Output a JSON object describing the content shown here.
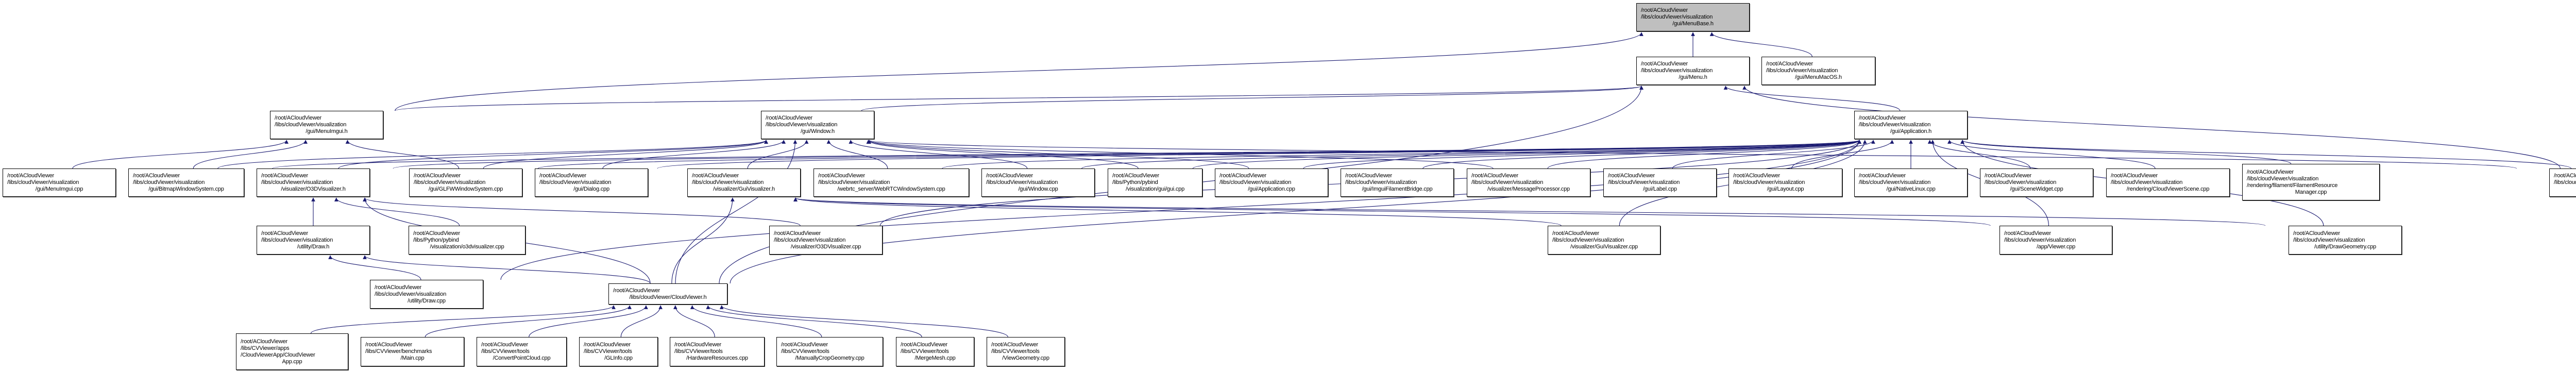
{
  "graph": {
    "edge_color": "#191970",
    "root_fill": "#bfbfbf",
    "nodes": [
      {
        "id": "menubase_h",
        "root": true,
        "lines": [
          "/root/ACloudViewer",
          "/libs/cloudViewer/visualization",
          "/gui/MenuBase.h"
        ]
      },
      {
        "id": "menu_h",
        "lines": [
          "/root/ACloudViewer",
          "/libs/cloudViewer/visualization",
          "/gui/Menu.h"
        ]
      },
      {
        "id": "menumacos_h",
        "lines": [
          "/root/ACloudViewer",
          "/libs/cloudViewer/visualization",
          "/gui/MenuMacOS.h"
        ]
      },
      {
        "id": "menuimgui_h",
        "lines": [
          "/root/ACloudViewer",
          "/libs/cloudViewer/visualization",
          "/gui/MenuImgui.h"
        ]
      },
      {
        "id": "window_h",
        "lines": [
          "/root/ACloudViewer",
          "/libs/cloudViewer/visualization",
          "/gui/Window.h"
        ]
      },
      {
        "id": "application_h",
        "lines": [
          "/root/ACloudViewer",
          "/libs/cloudViewer/visualization",
          "/gui/Application.h"
        ]
      },
      {
        "id": "menuimgui_cpp",
        "lines": [
          "/root/ACloudViewer",
          "/libs/cloudViewer/visualization",
          "/gui/MenuImgui.cpp"
        ]
      },
      {
        "id": "bitmapws_cpp",
        "lines": [
          "/root/ACloudViewer",
          "/libs/cloudViewer/visualization",
          "/gui/BitmapWindowSystem.cpp"
        ]
      },
      {
        "id": "o3dvis_h",
        "lines": [
          "/root/ACloudViewer",
          "/libs/cloudViewer/visualization",
          "/visualizer/O3DVisualizer.h"
        ]
      },
      {
        "id": "glfwws_cpp",
        "lines": [
          "/root/ACloudViewer",
          "/libs/cloudViewer/visualization",
          "/gui/GLFWWindowSystem.cpp"
        ]
      },
      {
        "id": "dialog_cpp",
        "lines": [
          "/root/ACloudViewer",
          "/libs/cloudViewer/visualization",
          "/gui/Dialog.cpp"
        ]
      },
      {
        "id": "guivis_h",
        "lines": [
          "/root/ACloudViewer",
          "/libs/cloudViewer/visualization",
          "/visualizer/GuiVisualizer.h"
        ]
      },
      {
        "id": "webrtc_cpp",
        "lines": [
          "/root/ACloudViewer",
          "/libs/cloudViewer/visualization",
          "/webrtc_server/WebRTCWindowSystem.cpp"
        ]
      },
      {
        "id": "window_cpp",
        "lines": [
          "/root/ACloudViewer",
          "/libs/cloudViewer/visualization",
          "/gui/Window.cpp"
        ]
      },
      {
        "id": "pybind_gui_cpp",
        "lines": [
          "/root/ACloudViewer",
          "/libs/Python/pybind",
          "/visualization/gui/gui.cpp"
        ]
      },
      {
        "id": "application_cpp",
        "lines": [
          "/root/ACloudViewer",
          "/libs/cloudViewer/visualization",
          "/gui/Application.cpp"
        ]
      },
      {
        "id": "imguifb_cpp",
        "lines": [
          "/root/ACloudViewer",
          "/libs/cloudViewer/visualization",
          "/gui/ImguiFilamentBridge.cpp"
        ]
      },
      {
        "id": "msgproc_cpp",
        "lines": [
          "/root/ACloudViewer",
          "/libs/cloudViewer/visualization",
          "/visualizer/MessageProcessor.cpp"
        ]
      },
      {
        "id": "label_cpp",
        "lines": [
          "/root/ACloudViewer",
          "/libs/cloudViewer/visualization",
          "/gui/Label.cpp"
        ]
      },
      {
        "id": "layout_cpp",
        "lines": [
          "/root/ACloudViewer",
          "/libs/cloudViewer/visualization",
          "/gui/Layout.cpp"
        ]
      },
      {
        "id": "nativelinux_cpp",
        "lines": [
          "/root/ACloudViewer",
          "/libs/cloudViewer/visualization",
          "/gui/NativeLinux.cpp"
        ]
      },
      {
        "id": "scenewidget_cpp",
        "lines": [
          "/root/ACloudViewer",
          "/libs/cloudViewer/visualization",
          "/gui/SceneWidget.cpp"
        ]
      },
      {
        "id": "cvscene_cpp",
        "lines": [
          "/root/ACloudViewer",
          "/libs/cloudViewer/visualization",
          "/rendering/CloudViewerScene.cpp"
        ]
      },
      {
        "id": "filres_cpp",
        "lines": [
          "/root/ACloudViewer",
          "/libs/cloudViewer/visualization",
          "/rendering/filament/FilamentResource",
          "Manager.cpp"
        ]
      },
      {
        "id": "menu_cpp",
        "lines": [
          "/root/ACloudViewer",
          "/libs/cloudViewer/visualization",
          "/gui/Menu.cpp"
        ]
      },
      {
        "id": "draw_h",
        "lines": [
          "/root/ACloudViewer",
          "/libs/cloudViewer/visualization",
          "/utility/Draw.h"
        ]
      },
      {
        "id": "pybind_o3dvis_cpp",
        "lines": [
          "/root/ACloudViewer",
          "/libs/Python/pybind",
          "/visualization/o3dvisualizer.cpp"
        ]
      },
      {
        "id": "o3dvis_cpp",
        "lines": [
          "/root/ACloudViewer",
          "/libs/cloudViewer/visualization",
          "/visualizer/O3DVisualizer.cpp"
        ]
      },
      {
        "id": "guivis_cpp",
        "lines": [
          "/root/ACloudViewer",
          "/libs/cloudViewer/visualization",
          "/visualizer/GuiVisualizer.cpp"
        ]
      },
      {
        "id": "viewer_cpp",
        "lines": [
          "/root/ACloudViewer",
          "/libs/cloudViewer/visualization",
          "/app/Viewer.cpp"
        ]
      },
      {
        "id": "drawgeom_cpp",
        "lines": [
          "/root/ACloudViewer",
          "/libs/cloudViewer/visualization",
          "/utility/DrawGeometry.cpp"
        ]
      },
      {
        "id": "draw_cpp",
        "lines": [
          "/root/ACloudViewer",
          "/libs/cloudViewer/visualization",
          "/utility/Draw.cpp"
        ]
      },
      {
        "id": "cloudviewer_h",
        "lines": [
          "/root/ACloudViewer",
          "/libs/cloudViewer/CloudViewer.h"
        ]
      },
      {
        "id": "cvapp_cpp",
        "lines": [
          "/root/ACloudViewer",
          "/libs/CVViewer/apps",
          "/CloudViewerApp/CloudViewer",
          "App.cpp"
        ]
      },
      {
        "id": "bench_main_cpp",
        "lines": [
          "/root/ACloudViewer",
          "/libs/CVViewer/benchmarks",
          "/Main.cpp"
        ]
      },
      {
        "id": "convertpc_cpp",
        "lines": [
          "/root/ACloudViewer",
          "/libs/CVViewer/tools",
          "/ConvertPointCloud.cpp"
        ]
      },
      {
        "id": "glinfo_cpp",
        "lines": [
          "/root/ACloudViewer",
          "/libs/CVViewer/tools",
          "/GLInfo.cpp"
        ]
      },
      {
        "id": "hwres_cpp",
        "lines": [
          "/root/ACloudViewer",
          "/libs/CVViewer/tools",
          "/HardwareResources.cpp"
        ]
      },
      {
        "id": "cropgeom_cpp",
        "lines": [
          "/root/ACloudViewer",
          "/libs/CVViewer/tools",
          "/ManuallyCropGeometry.cpp"
        ]
      },
      {
        "id": "mergemesh_cpp",
        "lines": [
          "/root/ACloudViewer",
          "/libs/CVViewer/tools",
          "/MergeMesh.cpp"
        ]
      },
      {
        "id": "viewgeom_cpp",
        "lines": [
          "/root/ACloudViewer",
          "/libs/CVViewer/tools",
          "/ViewGeometry.cpp"
        ]
      }
    ],
    "edges": [
      [
        "menu_h",
        "menubase_h"
      ],
      [
        "menumacos_h",
        "menubase_h"
      ],
      [
        "menuimgui_h",
        "menubase_h"
      ],
      [
        "window_h",
        "menu_h"
      ],
      [
        "menuimgui_h",
        "menu_h"
      ],
      [
        "application_h",
        "menu_h"
      ],
      [
        "menu_cpp",
        "menu_h"
      ],
      [
        "cloudviewer_h",
        "menu_h"
      ],
      [
        "menuimgui_cpp",
        "menuimgui_h"
      ],
      [
        "bitmapws_cpp",
        "menuimgui_h"
      ],
      [
        "glfwws_cpp",
        "menuimgui_h"
      ],
      [
        "guivis_h",
        "window_h"
      ],
      [
        "webrtc_cpp",
        "window_h"
      ],
      [
        "window_cpp",
        "window_h"
      ],
      [
        "pybind_gui_cpp",
        "window_h"
      ],
      [
        "application_cpp",
        "window_h"
      ],
      [
        "o3dvis_h",
        "window_h"
      ],
      [
        "bitmapws_cpp",
        "window_h"
      ],
      [
        "glfwws_cpp",
        "window_h"
      ],
      [
        "dialog_cpp",
        "window_h"
      ],
      [
        "cloudviewer_h",
        "window_h"
      ],
      [
        "msgproc_cpp",
        "window_h"
      ],
      [
        "menu_cpp",
        "window_h"
      ],
      [
        "bitmapws_cpp",
        "application_h"
      ],
      [
        "glfwws_cpp",
        "application_h"
      ],
      [
        "dialog_cpp",
        "application_h"
      ],
      [
        "o3dvis_h",
        "application_h"
      ],
      [
        "webrtc_cpp",
        "application_h"
      ],
      [
        "window_cpp",
        "application_h"
      ],
      [
        "pybind_gui_cpp",
        "application_h"
      ],
      [
        "application_cpp",
        "application_h"
      ],
      [
        "imguifb_cpp",
        "application_h"
      ],
      [
        "msgproc_cpp",
        "application_h"
      ],
      [
        "label_cpp",
        "application_h"
      ],
      [
        "layout_cpp",
        "application_h"
      ],
      [
        "nativelinux_cpp",
        "application_h"
      ],
      [
        "scenewidget_cpp",
        "application_h"
      ],
      [
        "cvscene_cpp",
        "application_h"
      ],
      [
        "filres_cpp",
        "application_h"
      ],
      [
        "menu_cpp",
        "application_h"
      ],
      [
        "guivis_cpp",
        "application_h"
      ],
      [
        "viewer_cpp",
        "application_h"
      ],
      [
        "drawgeom_cpp",
        "application_h"
      ],
      [
        "o3dvis_cpp",
        "application_h"
      ],
      [
        "draw_cpp",
        "application_h"
      ],
      [
        "cloudviewer_h",
        "application_h"
      ],
      [
        "draw_h",
        "o3dvis_h"
      ],
      [
        "pybind_o3dvis_cpp",
        "o3dvis_h"
      ],
      [
        "o3dvis_cpp",
        "o3dvis_h"
      ],
      [
        "cloudviewer_h",
        "o3dvis_h"
      ],
      [
        "draw_cpp",
        "draw_h"
      ],
      [
        "cloudviewer_h",
        "draw_h"
      ],
      [
        "guivis_cpp",
        "guivis_h"
      ],
      [
        "viewer_cpp",
        "guivis_h"
      ],
      [
        "drawgeom_cpp",
        "guivis_h"
      ],
      [
        "cloudviewer_h",
        "guivis_h"
      ],
      [
        "cvapp_cpp",
        "cloudviewer_h"
      ],
      [
        "bench_main_cpp",
        "cloudviewer_h"
      ],
      [
        "convertpc_cpp",
        "cloudviewer_h"
      ],
      [
        "glinfo_cpp",
        "cloudviewer_h"
      ],
      [
        "hwres_cpp",
        "cloudviewer_h"
      ],
      [
        "cropgeom_cpp",
        "cloudviewer_h"
      ],
      [
        "mergemesh_cpp",
        "cloudviewer_h"
      ],
      [
        "viewgeom_cpp",
        "cloudviewer_h"
      ]
    ]
  }
}
